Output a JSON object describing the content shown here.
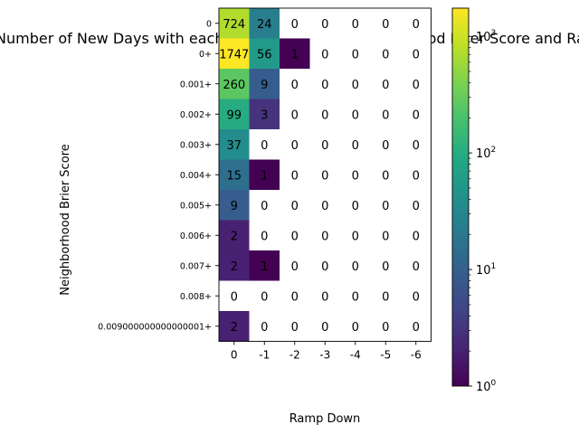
{
  "chart_data": {
    "type": "heatmap",
    "title": "Number of New Days with each Combination of Neighborhood Brier Score and Ramp Down",
    "xlabel": "Ramp Down",
    "ylabel": "Neighborhood Brier Score",
    "x_categories": [
      "0",
      "-1",
      "-2",
      "-3",
      "-4",
      "-5",
      "-6"
    ],
    "y_categories": [
      "0",
      "0+",
      "0.001+",
      "0.002+",
      "0.003+",
      "0.004+",
      "0.005+",
      "0.006+",
      "0.007+",
      "0.008+",
      "0.009000000000000001+"
    ],
    "values": [
      [
        724,
        24,
        0,
        0,
        0,
        0,
        0
      ],
      [
        1747,
        56,
        1,
        0,
        0,
        0,
        0
      ],
      [
        260,
        9,
        0,
        0,
        0,
        0,
        0
      ],
      [
        99,
        3,
        0,
        0,
        0,
        0,
        0
      ],
      [
        37,
        0,
        0,
        0,
        0,
        0,
        0
      ],
      [
        15,
        1,
        0,
        0,
        0,
        0,
        0
      ],
      [
        9,
        0,
        0,
        0,
        0,
        0,
        0
      ],
      [
        2,
        0,
        0,
        0,
        0,
        0,
        0
      ],
      [
        2,
        1,
        0,
        0,
        0,
        0,
        0
      ],
      [
        0,
        0,
        0,
        0,
        0,
        0,
        0
      ],
      [
        2,
        0,
        0,
        0,
        0,
        0,
        0
      ]
    ],
    "colormap": "viridis",
    "color_scale": "log",
    "zero_cells": "white",
    "colorbar": {
      "range": [
        1,
        1747
      ],
      "ticks": [
        {
          "value": 1,
          "base": "10",
          "exp": "0"
        },
        {
          "value": 10,
          "base": "10",
          "exp": "1"
        },
        {
          "value": 100,
          "base": "10",
          "exp": "2"
        },
        {
          "value": 1000,
          "base": "10",
          "exp": "3"
        }
      ]
    },
    "grid": false
  }
}
